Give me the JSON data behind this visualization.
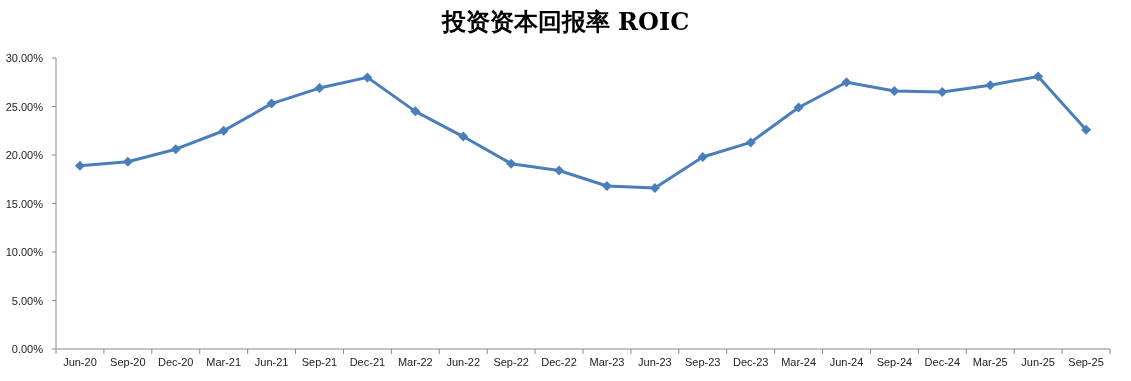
{
  "chart_data": {
    "type": "line",
    "title": "投资资本回报率 ROIC",
    "categories": [
      "Jun-20",
      "Sep-20",
      "Dec-20",
      "Mar-21",
      "Jun-21",
      "Sep-21",
      "Dec-21",
      "Mar-22",
      "Jun-22",
      "Sep-22",
      "Dec-22",
      "Mar-23",
      "Jun-23",
      "Sep-23",
      "Dec-23",
      "Mar-24",
      "Jun-24",
      "Sep-24",
      "Dec-24",
      "Mar-25",
      "Jun-25",
      "Sep-25"
    ],
    "series": [
      {
        "color": "#4a7ebb",
        "values": [
          18.9,
          19.3,
          20.6,
          22.5,
          25.3,
          26.9,
          28.0,
          24.5,
          21.9,
          19.1,
          18.4,
          16.8,
          16.6,
          19.8,
          21.3,
          24.9,
          27.5,
          26.6,
          26.5,
          27.2,
          28.1,
          22.6
        ]
      }
    ],
    "ylim": [
      0,
      30
    ],
    "yticks": [
      {
        "value": 0,
        "label": "0.00%"
      },
      {
        "value": 5,
        "label": "5.00%"
      },
      {
        "value": 10,
        "label": "10.00%"
      },
      {
        "value": 15,
        "label": "15.00%"
      },
      {
        "value": 20,
        "label": "20.00%"
      },
      {
        "value": 25,
        "label": "25.00%"
      },
      {
        "value": 30,
        "label": "30.00%"
      }
    ],
    "marker": "diamond",
    "line_style": "solid",
    "grid": false
  }
}
